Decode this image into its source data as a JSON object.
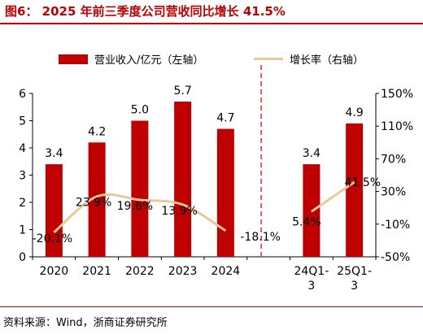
{
  "title": "图6：  2025 年前三季度公司营收同比增长 41.5%",
  "source": "资料来源：Wind，浙商证券研究所",
  "colors": {
    "bar": "#c00000",
    "line": "#e8c998",
    "divider": "#e03030",
    "title": "#c00000"
  },
  "chart_data": {
    "type": "bar+line",
    "categories": [
      "2020",
      "2021",
      "2022",
      "2023",
      "2024",
      "",
      "24Q1-3",
      "25Q1-3"
    ],
    "legend": [
      "营业收入/亿元（左轴）",
      "增长率（右轴）"
    ],
    "legend_placement": "top",
    "series": [
      {
        "name": "营业收入/亿元（左轴）",
        "type": "bar",
        "axis": "left",
        "values": [
          3.4,
          4.2,
          5.0,
          5.7,
          4.7,
          null,
          3.4,
          4.9
        ],
        "labels": [
          "3.4",
          "4.2",
          "5.0",
          "5.7",
          "4.7",
          "",
          "3.4",
          "4.9"
        ]
      },
      {
        "name": "增长率（右轴）",
        "type": "line",
        "axis": "right",
        "values": [
          -20.1,
          23.9,
          19.6,
          13.9,
          -18.1,
          null,
          5.4,
          41.5
        ],
        "labels": [
          "-20.1%",
          "23.9%",
          "19.6%",
          "13.9%",
          "-18.1%",
          "",
          "5.4%",
          "41.5%"
        ]
      }
    ],
    "y_left": {
      "min": 0,
      "max": 6,
      "ticks": [
        "0",
        "1",
        "2",
        "3",
        "4",
        "5",
        "6"
      ]
    },
    "y_right": {
      "min": -50,
      "max": 150,
      "ticks": [
        "-50%",
        "-10%",
        "30%",
        "70%",
        "110%",
        "150%"
      ]
    },
    "grid": false,
    "divider_after_category": 4
  }
}
